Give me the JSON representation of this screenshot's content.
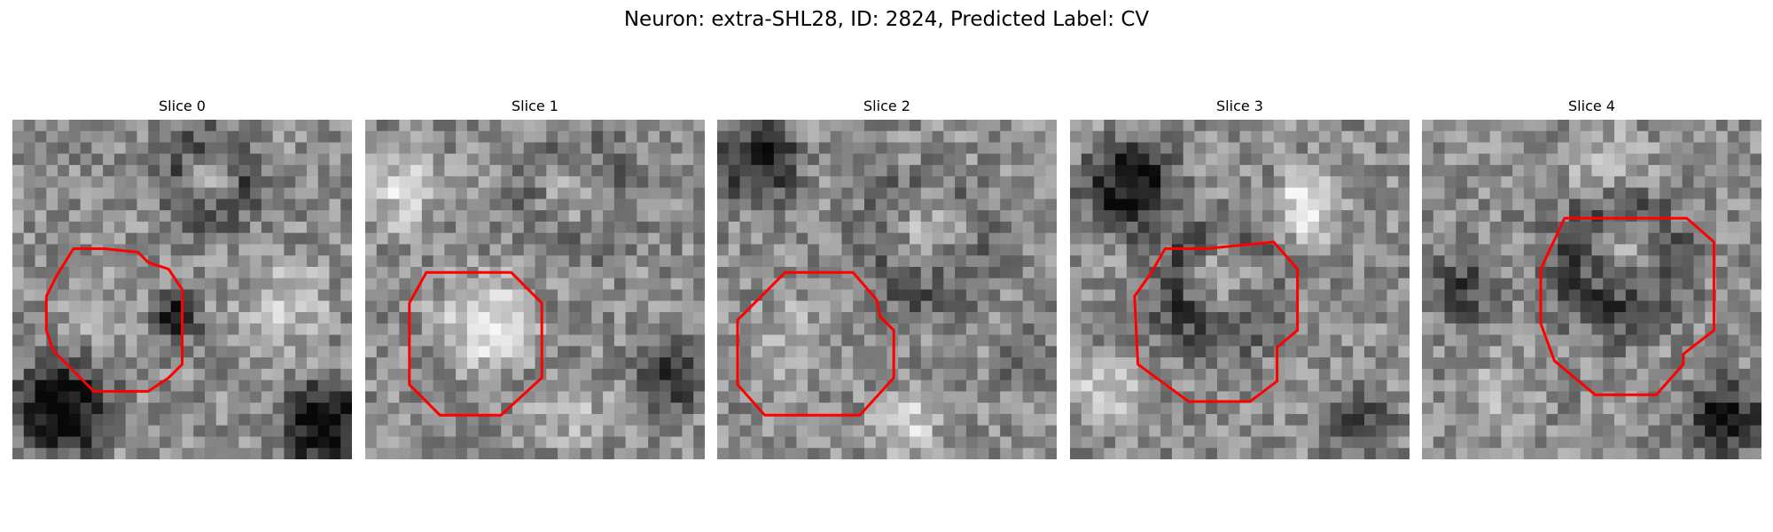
{
  "figure": {
    "title": "Neuron: extra-SHL28, ID: 2824, Predicted Label: CV"
  },
  "panels": [
    {
      "title": "Slice 0",
      "content": "grayscale microscopy patch with red outline"
    },
    {
      "title": "Slice 1",
      "content": "grayscale microscopy patch with red outline"
    },
    {
      "title": "Slice 2",
      "content": "grayscale microscopy patch with red outline"
    },
    {
      "title": "Slice 3",
      "content": "grayscale microscopy patch with red outline"
    },
    {
      "title": "Slice 4",
      "content": "grayscale microscopy patch with red outline"
    }
  ],
  "colors": {
    "outline": "#ff0000",
    "background": "#ffffff"
  }
}
